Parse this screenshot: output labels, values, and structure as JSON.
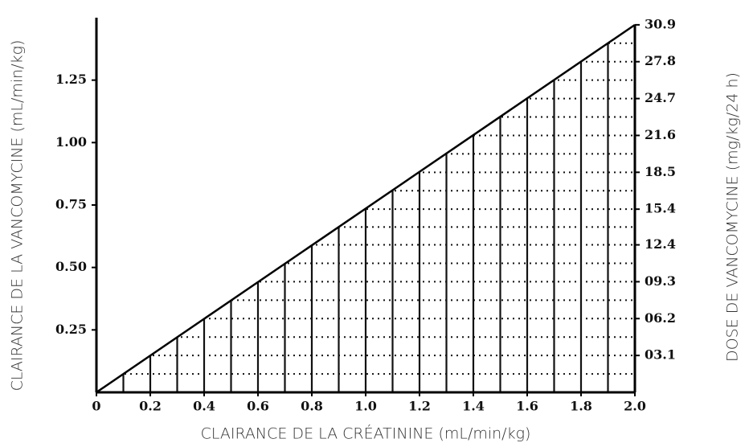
{
  "chart_data": {
    "type": "line",
    "x_label": "CLAIRANCE DE LA CRÉATININE (mL/min/kg)",
    "y_label": "CLAIRANCE DE LA VANCOMYCINE (mL/min/kg)",
    "y2_label": "DOSE DE VANCOMYCINE (mg/kg/24 h)",
    "series": [
      {
        "x": [
          0,
          2.0
        ],
        "values": [
          0,
          30.9
        ],
        "axis": "y2",
        "color": "#000000"
      }
    ],
    "xlim": [
      0,
      2.0
    ],
    "xticks": [
      0,
      0.2,
      0.4,
      0.6,
      0.8,
      {
        "value": 1,
        "label": "1.0"
      },
      1.2,
      1.4,
      1.6,
      1.8,
      {
        "value": 2,
        "label": "2.0"
      }
    ],
    "ylim": [
      0,
      1.5
    ],
    "yticks": [
      0.25,
      {
        "value": 0.5,
        "label": "0.50"
      },
      0.75,
      {
        "value": 1,
        "label": "1.00"
      },
      1.25
    ],
    "y2lim": [
      0,
      31.5
    ],
    "y2ticks": [
      {
        "value": 3.1,
        "label": "03.1"
      },
      {
        "value": 6.2,
        "label": "06.2"
      },
      {
        "value": 9.3,
        "label": "09.3"
      },
      12.4,
      15.4,
      18.5,
      21.6,
      24.7,
      27.8,
      30.9
    ]
  }
}
